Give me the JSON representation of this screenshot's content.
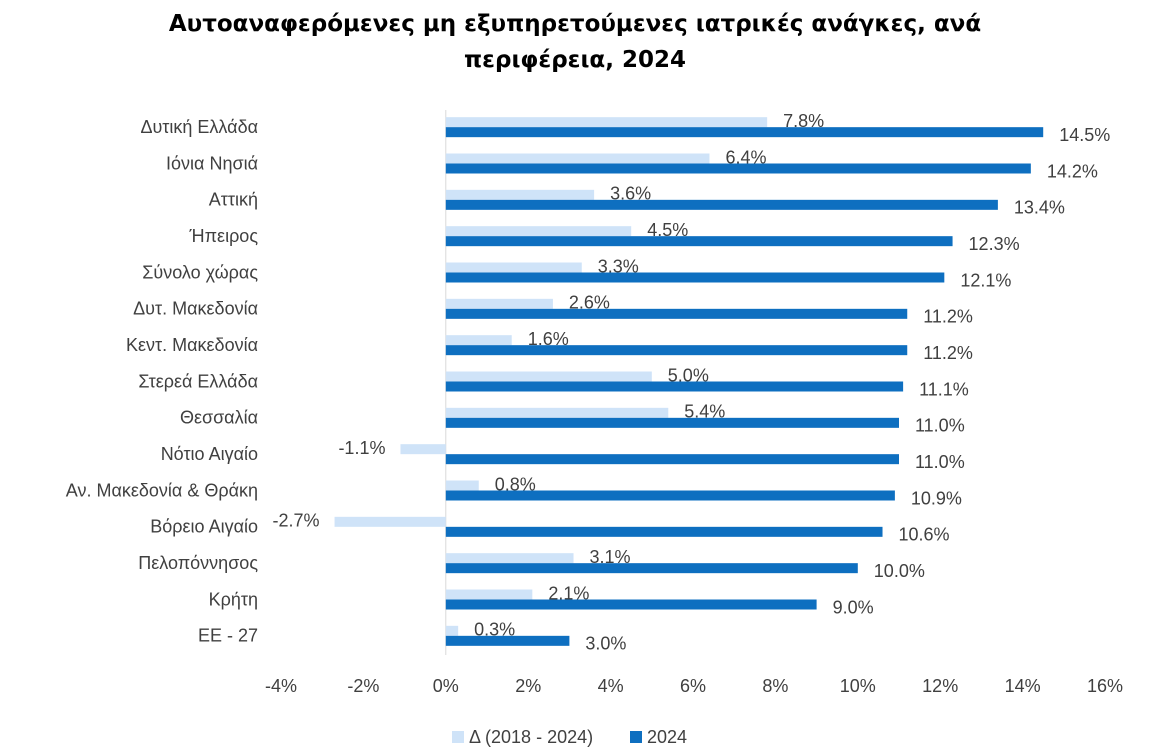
{
  "chart_data": {
    "type": "bar",
    "orientation": "horizontal",
    "title": "Αυτοαναφερόμενες μη εξυπηρετούμενες ιατρικές ανάγκες, ανά περιφέρεια, 2024",
    "categories": [
      "Δυτική Ελλάδα",
      "Ιόνια Νησιά",
      "Αττική",
      "Ήπειρος",
      "Σύνολο χώρας",
      "Δυτ. Μακεδονία",
      "Κεντ. Μακεδονία",
      "Στερεά Ελλάδα",
      "Θεσσαλία",
      "Νότιο Αιγαίο",
      "Αν. Μακεδονία & Θράκη",
      "Βόρειο Αιγαίο",
      "Πελοπόννησος",
      "Κρήτη",
      "ΕΕ - 27"
    ],
    "series": [
      {
        "name": "Δ (2018 - 2024)",
        "color": "#cfe3f8",
        "values": [
          7.8,
          6.4,
          3.6,
          4.5,
          3.3,
          2.6,
          1.6,
          5.0,
          5.4,
          -1.1,
          0.8,
          -2.7,
          3.1,
          2.1,
          0.3
        ],
        "value_labels": [
          "7.8%",
          "6.4%",
          "3.6%",
          "4.5%",
          "3.3%",
          "2.6%",
          "1.6%",
          "5.0%",
          "5.4%",
          "-1.1%",
          "0.8%",
          "-2.7%",
          "3.1%",
          "2.1%",
          "0.3%"
        ]
      },
      {
        "name": "2024",
        "color": "#0e6fc0",
        "values": [
          14.5,
          14.2,
          13.4,
          12.3,
          12.1,
          11.2,
          11.2,
          11.1,
          11.0,
          11.0,
          10.9,
          10.6,
          10.0,
          9.0,
          3.0
        ],
        "value_labels": [
          "14.5%",
          "14.2%",
          "13.4%",
          "12.3%",
          "12.1%",
          "11.2%",
          "11.2%",
          "11.1%",
          "11.0%",
          "11.0%",
          "10.9%",
          "10.6%",
          "10.0%",
          "9.0%",
          "3.0%"
        ]
      }
    ],
    "xlim": [
      -4,
      16
    ],
    "xticks": [
      {
        "value": -4,
        "label": "-4%"
      },
      {
        "value": -2,
        "label": "-2%"
      },
      {
        "value": 0,
        "label": "0%"
      },
      {
        "value": 2,
        "label": "2%"
      },
      {
        "value": 4,
        "label": "4%"
      },
      {
        "value": 6,
        "label": "6%"
      },
      {
        "value": 8,
        "label": "8%"
      },
      {
        "value": 10,
        "label": "10%"
      },
      {
        "value": 12,
        "label": "12%"
      },
      {
        "value": 14,
        "label": "14%"
      },
      {
        "value": 16,
        "label": "16%"
      }
    ],
    "legend": "bottom"
  }
}
